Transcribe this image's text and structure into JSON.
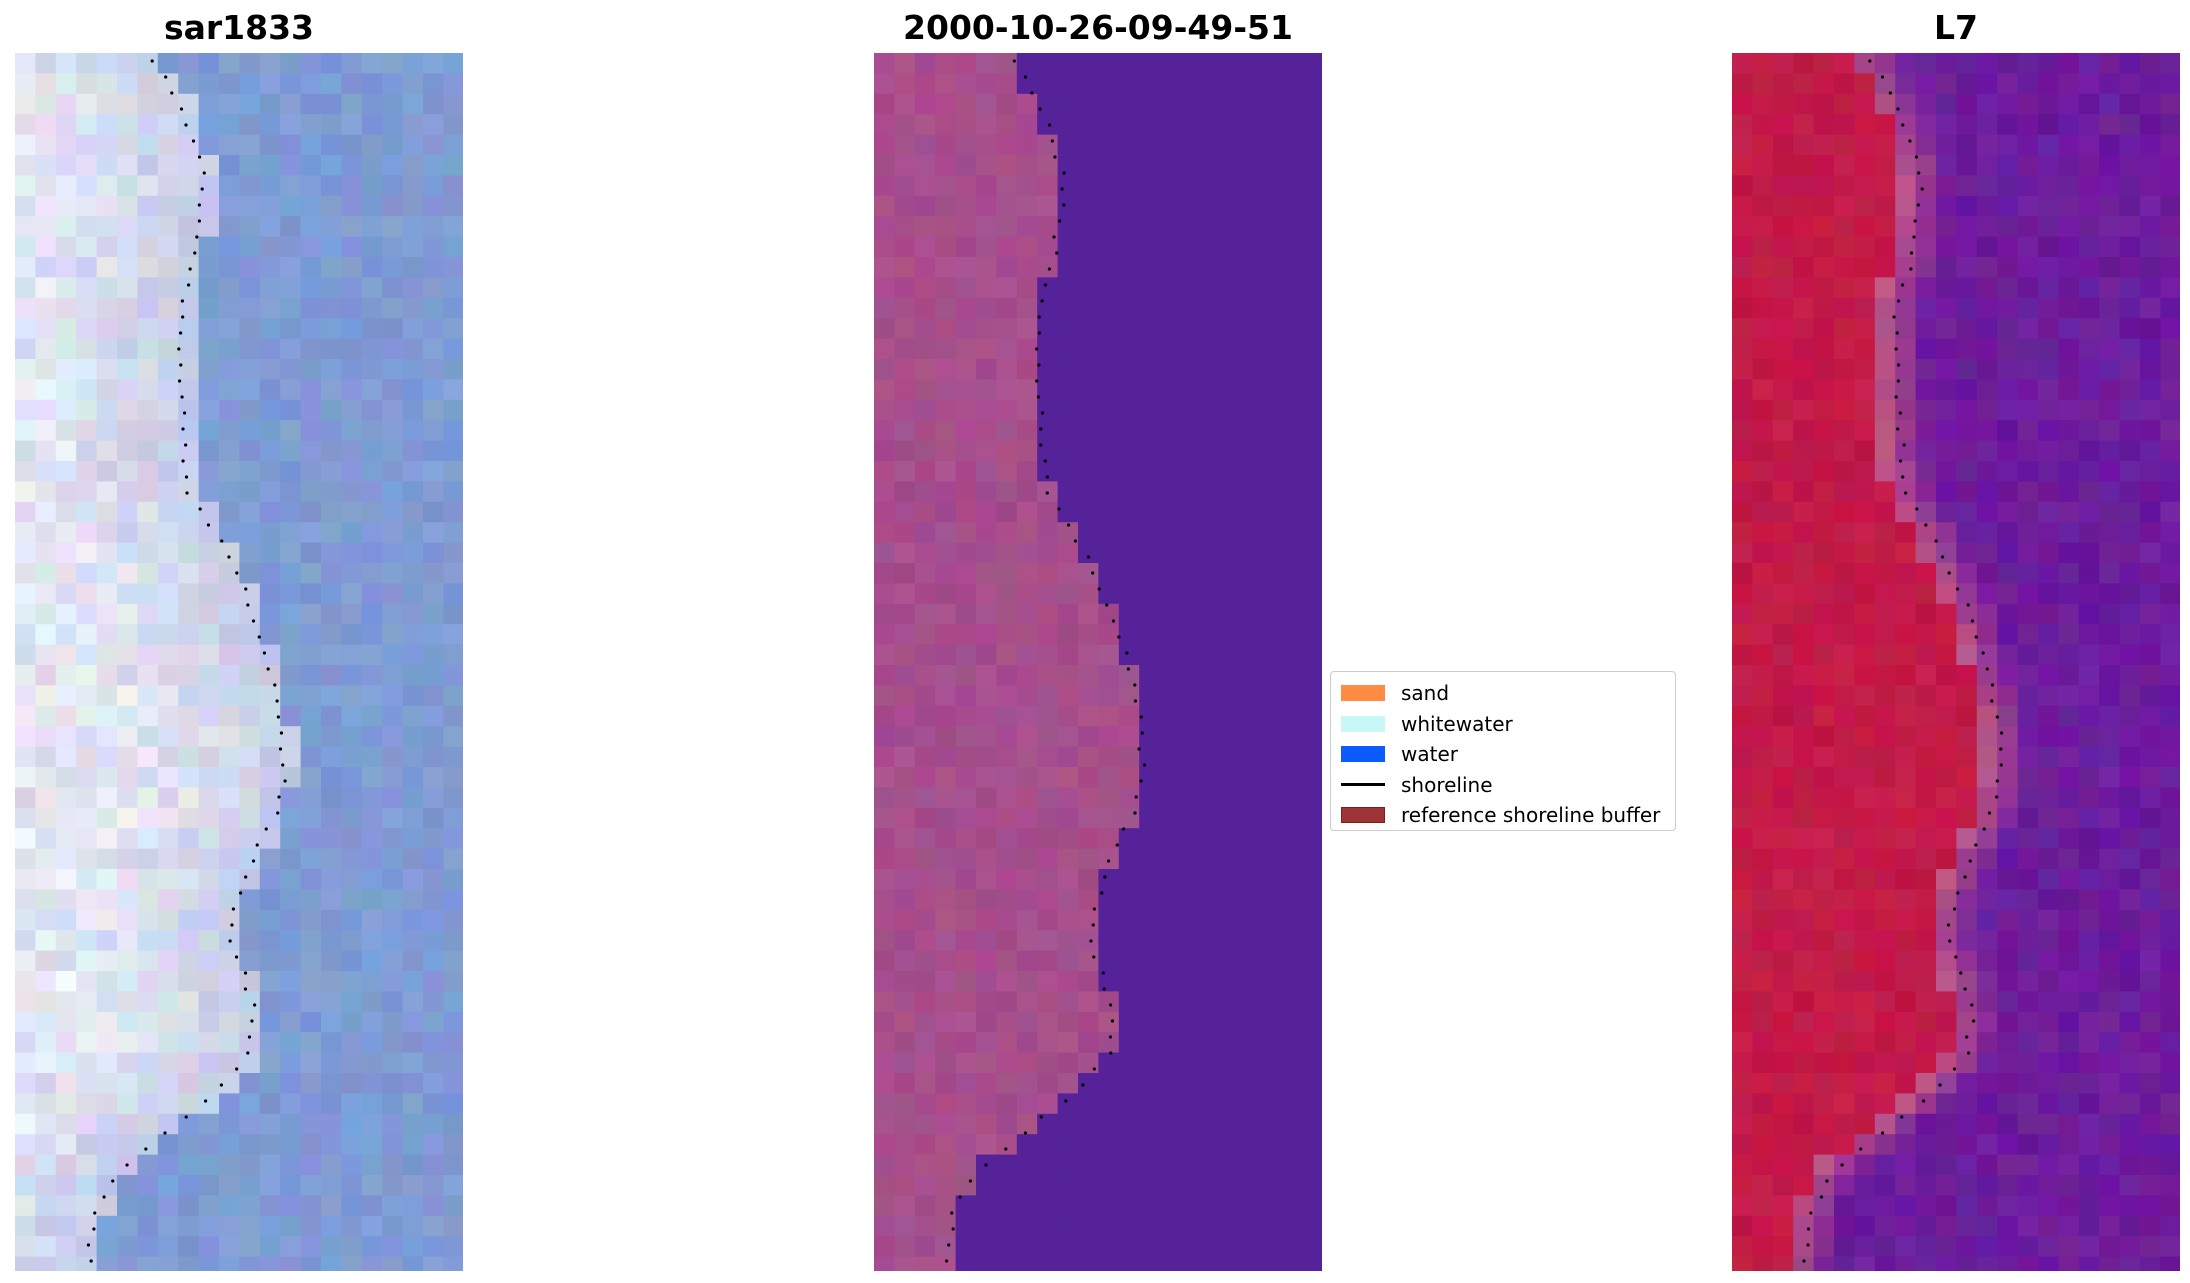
{
  "panels": {
    "rgb_title": "sar1833",
    "class_title": "2000-10-26-09-49-51",
    "ndwi_title": "L7"
  },
  "legend": {
    "items": [
      {
        "label": "sand",
        "color": "#ff8c42",
        "kind": "patch"
      },
      {
        "label": "whitewater",
        "color": "#c8f7f7",
        "kind": "patch"
      },
      {
        "label": "water",
        "color": "#0a5cff",
        "kind": "patch"
      },
      {
        "label": "shoreline",
        "color": "#000000",
        "kind": "line"
      },
      {
        "label": "reference shoreline buffer",
        "color": "#9e3438",
        "kind": "patch"
      }
    ]
  },
  "colors": {
    "rgb_water": "#7f9bd4",
    "rgb_land": "#c4cce6",
    "rgb_bright": "#f2f2fa",
    "class_land": "#a64e8c",
    "class_water": "#55229a",
    "ndwi_land": "#c21a48",
    "ndwi_mid": "#c25a86",
    "ndwi_water": "#6c1c9c"
  }
}
